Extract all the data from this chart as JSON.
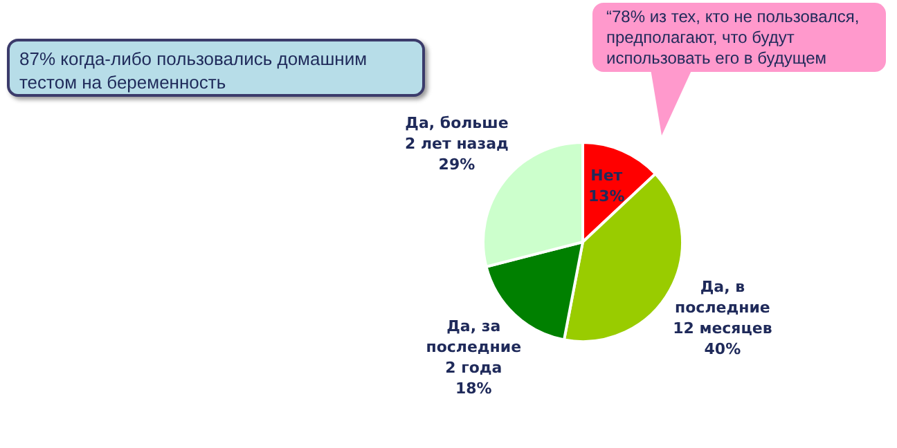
{
  "chart_data": {
    "type": "pie",
    "categories": [
      "Нет",
      "Да, в последние 12 месяцев",
      "Да, за последние 2 года",
      "Да, больше 2 лет назад"
    ],
    "values": [
      13,
      40,
      18,
      29
    ],
    "value_labels": [
      "13%",
      "40%",
      "18%",
      "29%"
    ],
    "colors": [
      "#ff0000",
      "#99cc00",
      "#008000",
      "#ccffcc"
    ],
    "legend": false,
    "annotations": [
      "87% когда-либо пользовались домашним тестом на беременность",
      "“78%  из тех, кто не пользовался, предполагают, что будут использовать его в будущем"
    ]
  }
}
